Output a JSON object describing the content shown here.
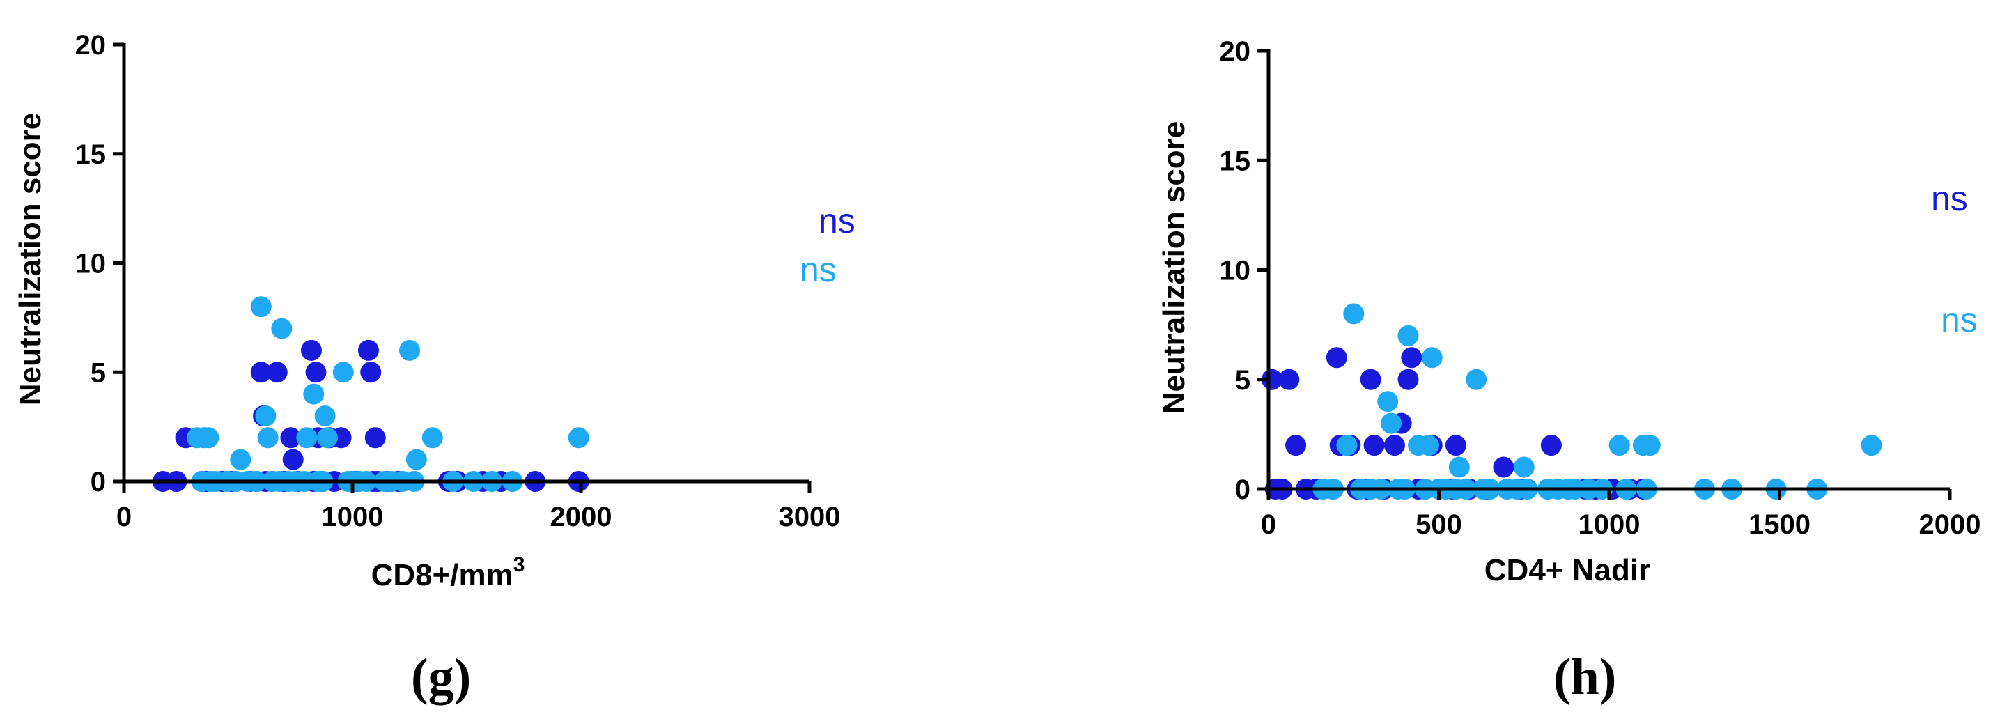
{
  "chart_data": [
    {
      "type": "scatter",
      "panel_label": "(g)",
      "xlabel": "CD8+/mm",
      "xlabel_sup": "3",
      "ylabel": "Neutralization score",
      "xlim": [
        0,
        3000
      ],
      "ylim": [
        0,
        20
      ],
      "xticks": [
        0,
        1000,
        2000,
        3000
      ],
      "yticks": [
        0,
        5,
        10,
        15,
        20
      ],
      "colors": [
        "#1a1adb",
        "#1fa9f2"
      ],
      "annotations": [
        {
          "text": "ns",
          "color": "#1a1adb"
        },
        {
          "text": "ns",
          "color": "#1fa9f2"
        }
      ],
      "series": [
        {
          "color": "#1a1adb",
          "points": [
            [
              170,
              0
            ],
            [
              230,
              0
            ],
            [
              270,
              2
            ],
            [
              340,
              0
            ],
            [
              360,
              0
            ],
            [
              430,
              0
            ],
            [
              470,
              0
            ],
            [
              550,
              0
            ],
            [
              580,
              0
            ],
            [
              600,
              5
            ],
            [
              610,
              3
            ],
            [
              620,
              0
            ],
            [
              650,
              0
            ],
            [
              670,
              5
            ],
            [
              700,
              0
            ],
            [
              730,
              2
            ],
            [
              740,
              1
            ],
            [
              760,
              0
            ],
            [
              820,
              6
            ],
            [
              830,
              0
            ],
            [
              840,
              5
            ],
            [
              850,
              2
            ],
            [
              870,
              0
            ],
            [
              900,
              2
            ],
            [
              920,
              0
            ],
            [
              950,
              2
            ],
            [
              1000,
              0
            ],
            [
              1020,
              0
            ],
            [
              1070,
              6
            ],
            [
              1080,
              5
            ],
            [
              1090,
              0
            ],
            [
              1100,
              2
            ],
            [
              1110,
              0
            ],
            [
              1150,
              0
            ],
            [
              1200,
              0
            ],
            [
              1420,
              0
            ],
            [
              1460,
              0
            ],
            [
              1570,
              0
            ],
            [
              1650,
              0
            ],
            [
              1800,
              0
            ],
            [
              1990,
              0
            ]
          ]
        },
        {
          "color": "#1fa9f2",
          "points": [
            [
              320,
              2
            ],
            [
              340,
              0
            ],
            [
              350,
              2
            ],
            [
              370,
              2
            ],
            [
              380,
              0
            ],
            [
              400,
              0
            ],
            [
              450,
              0
            ],
            [
              490,
              0
            ],
            [
              510,
              1
            ],
            [
              540,
              0
            ],
            [
              580,
              0
            ],
            [
              600,
              8
            ],
            [
              620,
              3
            ],
            [
              630,
              2
            ],
            [
              650,
              0
            ],
            [
              680,
              0
            ],
            [
              690,
              7
            ],
            [
              720,
              0
            ],
            [
              750,
              0
            ],
            [
              790,
              0
            ],
            [
              800,
              2
            ],
            [
              830,
              4
            ],
            [
              850,
              0
            ],
            [
              870,
              0
            ],
            [
              880,
              3
            ],
            [
              890,
              2
            ],
            [
              960,
              5
            ],
            [
              980,
              0
            ],
            [
              1000,
              0
            ],
            [
              1030,
              0
            ],
            [
              1060,
              0
            ],
            [
              1140,
              0
            ],
            [
              1170,
              0
            ],
            [
              1220,
              0
            ],
            [
              1250,
              6
            ],
            [
              1270,
              0
            ],
            [
              1280,
              1
            ],
            [
              1350,
              2
            ],
            [
              1440,
              0
            ],
            [
              1530,
              0
            ],
            [
              1610,
              0
            ],
            [
              1700,
              0
            ],
            [
              1990,
              2
            ]
          ]
        }
      ]
    },
    {
      "type": "scatter",
      "panel_label": "(h)",
      "xlabel": "CD4+ Nadir",
      "ylabel": "Neutralization score",
      "xlim": [
        0,
        2000
      ],
      "ylim": [
        0,
        20
      ],
      "xticks": [
        0,
        500,
        1000,
        1500,
        2000
      ],
      "yticks": [
        0,
        5,
        10,
        15,
        20
      ],
      "colors": [
        "#1a1adb",
        "#1fa9f2"
      ],
      "annotations": [
        {
          "text": "ns",
          "color": "#1a1adb"
        },
        {
          "text": "ns",
          "color": "#1fa9f2"
        }
      ],
      "series": [
        {
          "color": "#1a1adb",
          "points": [
            [
              10,
              5
            ],
            [
              20,
              0
            ],
            [
              40,
              0
            ],
            [
              60,
              5
            ],
            [
              80,
              2
            ],
            [
              110,
              0
            ],
            [
              140,
              0
            ],
            [
              190,
              0
            ],
            [
              200,
              6
            ],
            [
              210,
              2
            ],
            [
              240,
              2
            ],
            [
              260,
              0
            ],
            [
              290,
              0
            ],
            [
              300,
              5
            ],
            [
              310,
              2
            ],
            [
              340,
              0
            ],
            [
              370,
              2
            ],
            [
              390,
              3
            ],
            [
              410,
              5
            ],
            [
              420,
              6
            ],
            [
              440,
              0
            ],
            [
              460,
              0
            ],
            [
              480,
              2
            ],
            [
              500,
              0
            ],
            [
              540,
              0
            ],
            [
              550,
              2
            ],
            [
              590,
              0
            ],
            [
              640,
              0
            ],
            [
              690,
              1
            ],
            [
              740,
              0
            ],
            [
              820,
              0
            ],
            [
              830,
              2
            ],
            [
              880,
              0
            ],
            [
              930,
              0
            ],
            [
              960,
              0
            ],
            [
              1010,
              0
            ],
            [
              1060,
              0
            ],
            [
              1100,
              0
            ]
          ]
        },
        {
          "color": "#1fa9f2",
          "points": [
            [
              160,
              0
            ],
            [
              190,
              0
            ],
            [
              230,
              2
            ],
            [
              250,
              8
            ],
            [
              270,
              0
            ],
            [
              300,
              0
            ],
            [
              330,
              0
            ],
            [
              350,
              4
            ],
            [
              360,
              3
            ],
            [
              380,
              0
            ],
            [
              400,
              0
            ],
            [
              410,
              7
            ],
            [
              440,
              2
            ],
            [
              460,
              0
            ],
            [
              470,
              2
            ],
            [
              480,
              6
            ],
            [
              500,
              0
            ],
            [
              520,
              0
            ],
            [
              550,
              0
            ],
            [
              560,
              1
            ],
            [
              580,
              0
            ],
            [
              610,
              5
            ],
            [
              630,
              0
            ],
            [
              650,
              0
            ],
            [
              700,
              0
            ],
            [
              730,
              0
            ],
            [
              750,
              1
            ],
            [
              760,
              0
            ],
            [
              820,
              0
            ],
            [
              850,
              0
            ],
            [
              880,
              0
            ],
            [
              900,
              0
            ],
            [
              940,
              0
            ],
            [
              980,
              0
            ],
            [
              1030,
              2
            ],
            [
              1050,
              0
            ],
            [
              1100,
              2
            ],
            [
              1110,
              0
            ],
            [
              1120,
              2
            ],
            [
              1280,
              0
            ],
            [
              1360,
              0
            ],
            [
              1490,
              0
            ],
            [
              1610,
              0
            ],
            [
              1770,
              2
            ]
          ]
        }
      ]
    }
  ]
}
